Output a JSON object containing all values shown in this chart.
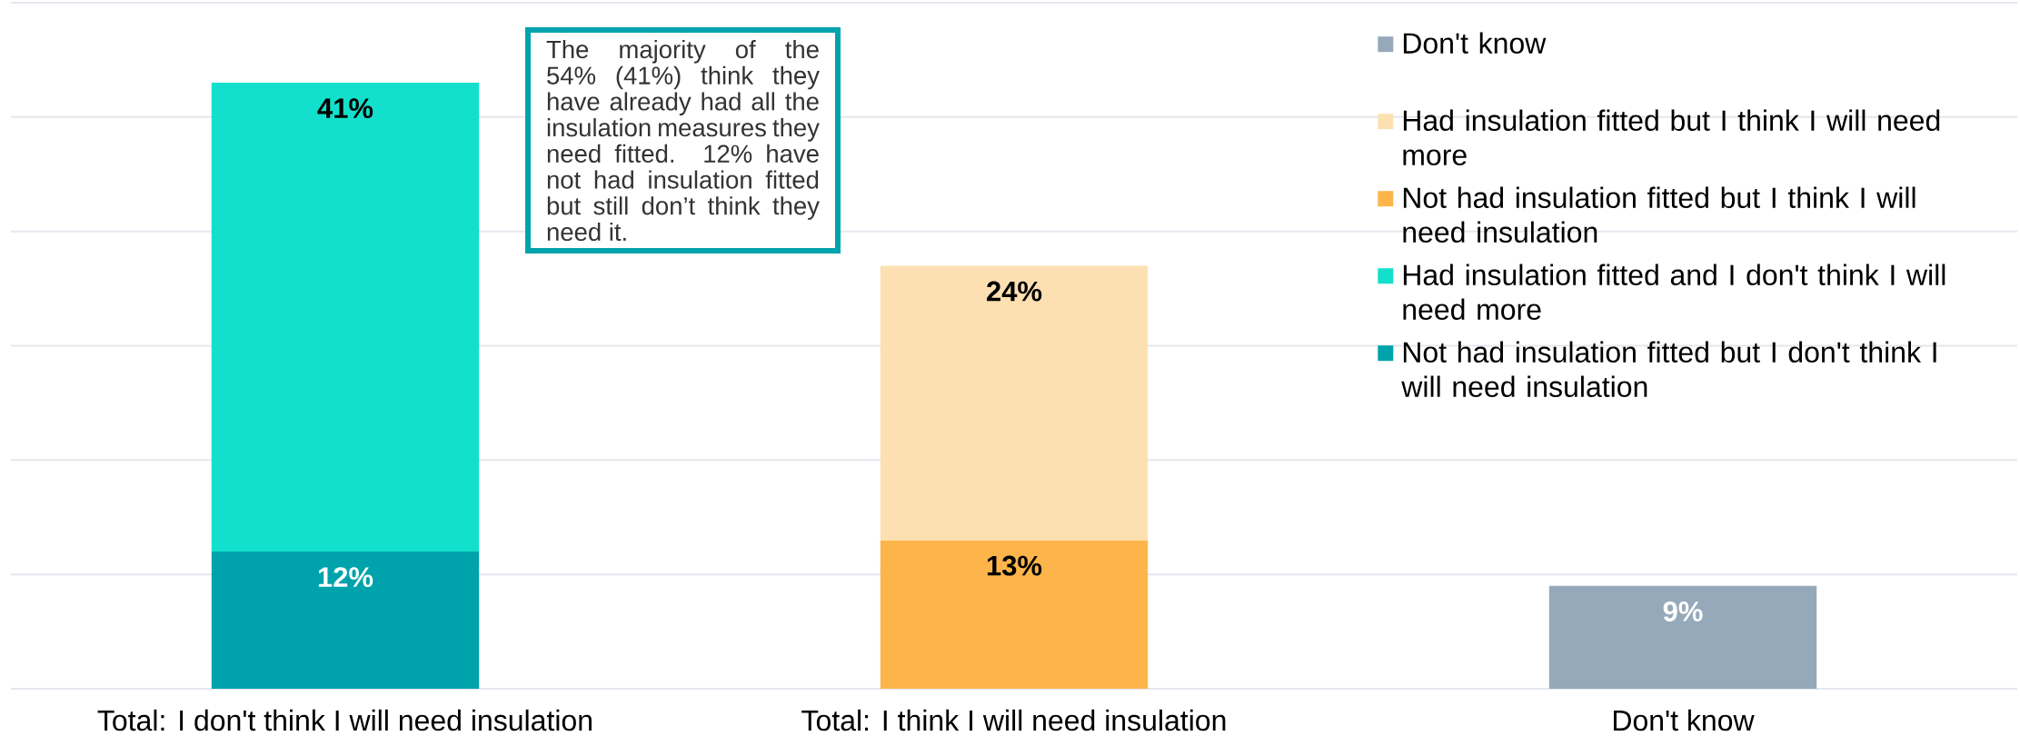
{
  "chart_data": {
    "type": "bar",
    "stacked": true,
    "categories": [
      "Total: I don't think I will need insulation",
      "Total: I think I will need insulation",
      "Don't know"
    ],
    "series": [
      {
        "name": "Not had insulation fitted but I don't think I will need insulation",
        "color": "#00a3ab",
        "values": [
          12,
          null,
          null
        ],
        "value_labels": [
          "12%",
          null,
          null
        ]
      },
      {
        "name": "Had insulation fitted and I don't think I will need more",
        "color": "#12e0cc",
        "values": [
          41,
          null,
          null
        ],
        "value_labels": [
          "41%",
          null,
          null
        ]
      },
      {
        "name": "Not had insulation fitted but I think I will need insulation",
        "color": "#fdb54b",
        "values": [
          null,
          13,
          null
        ],
        "value_labels": [
          null,
          "13%",
          null
        ]
      },
      {
        "name": "Had insulation fitted but I think I will need more",
        "color": "#fde0b2",
        "values": [
          null,
          24,
          null
        ],
        "value_labels": [
          null,
          "24%",
          null
        ]
      },
      {
        "name": "Don't know",
        "color": "#96a9ba",
        "values": [
          null,
          null,
          9
        ],
        "value_labels": [
          null,
          null,
          "9%"
        ]
      }
    ],
    "ylim": [
      0,
      60
    ],
    "yticks": [
      {
        "value": 0,
        "label": null
      },
      {
        "value": 10,
        "label": null
      },
      {
        "value": 20,
        "label": null
      },
      {
        "value": 30,
        "label": null
      },
      {
        "value": 40,
        "label": null
      },
      {
        "value": 50,
        "label": null
      },
      {
        "value": 60,
        "label": null
      }
    ],
    "grid": "y",
    "tick_labels": "x",
    "legend": "top right",
    "annotations": [
      "The majority of the 54% (41%) think they have already had all the insulation measures they need fitted. 12% have not had insulation fitted but still don’t think they need it."
    ]
  }
}
